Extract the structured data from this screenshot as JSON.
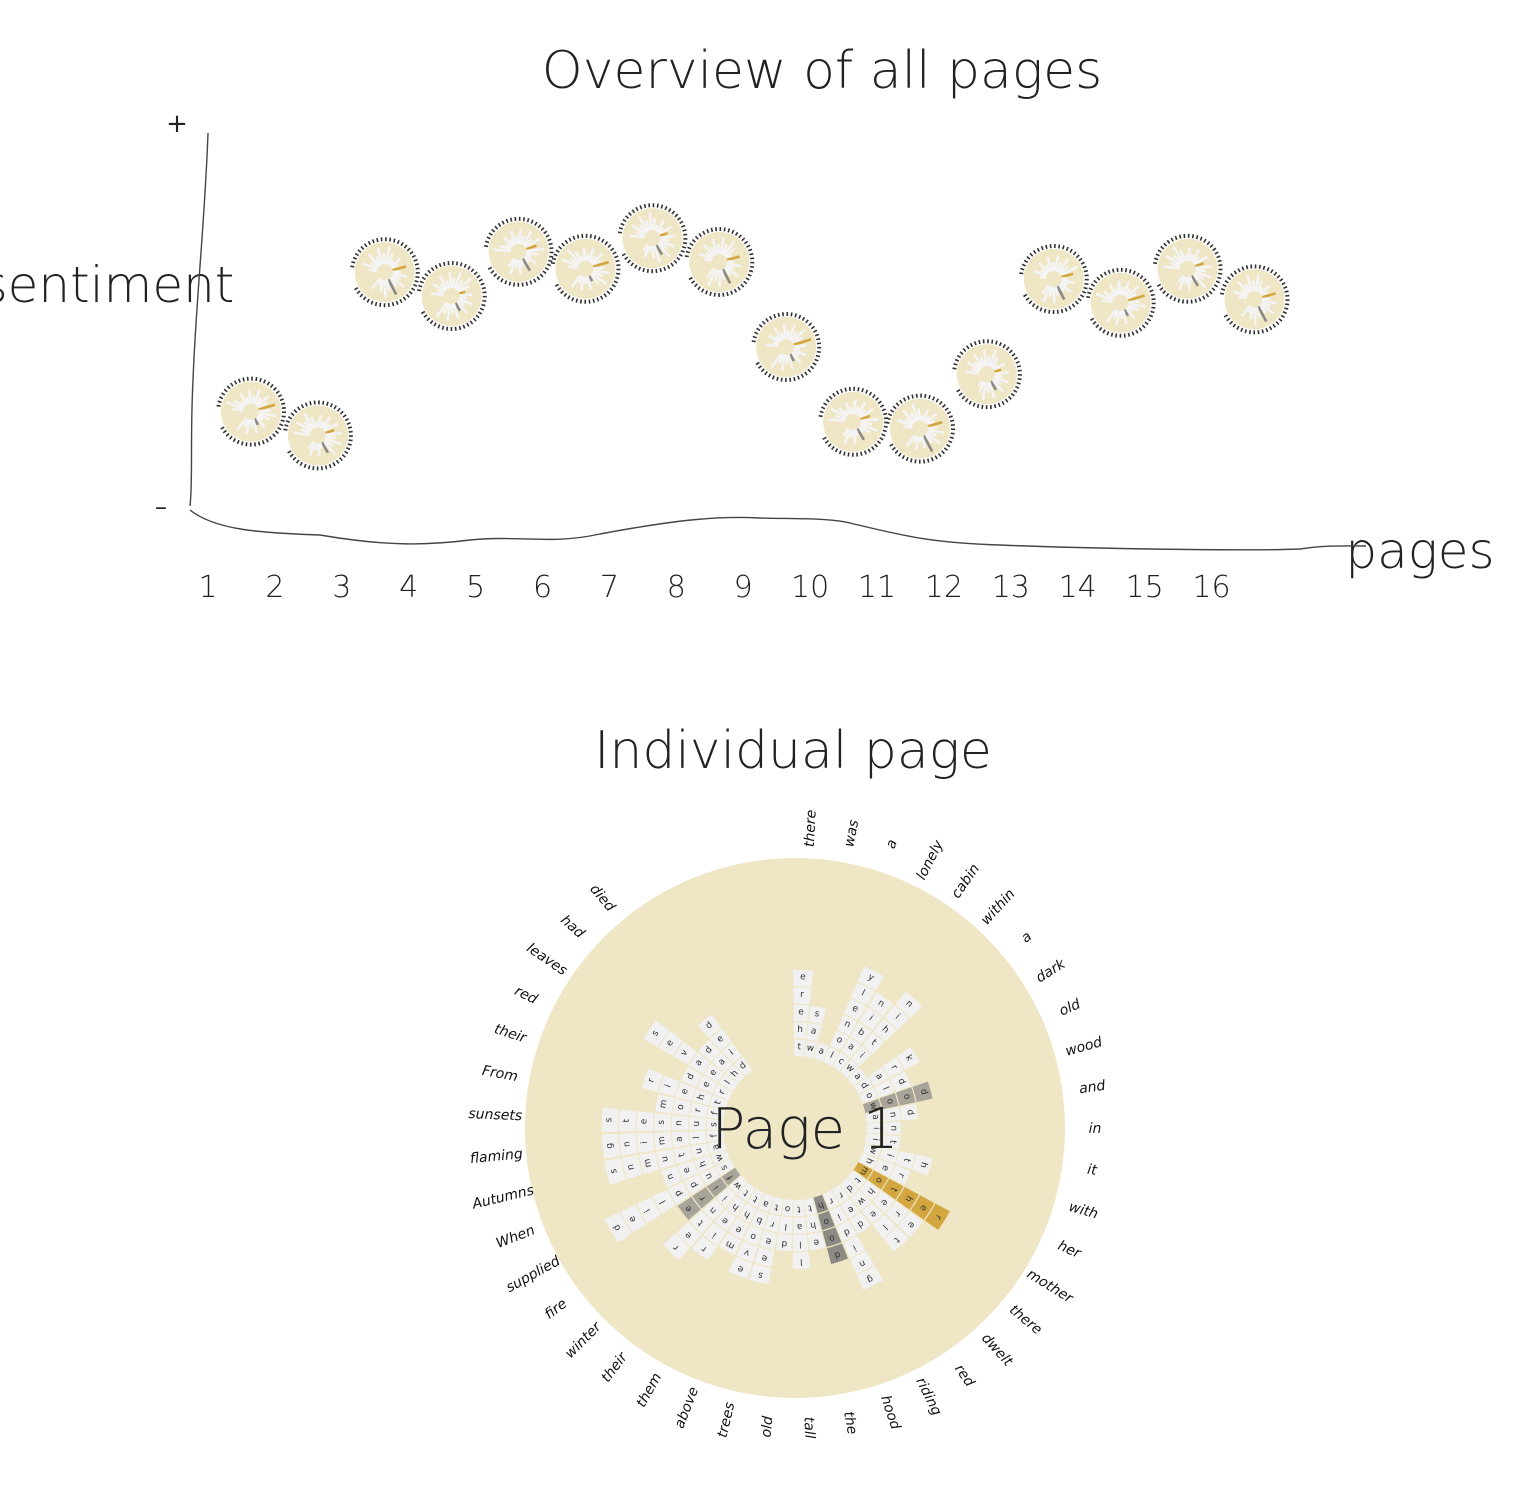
{
  "overview": {
    "title": "Overview of all pages",
    "y_axis": {
      "label": "sentiment",
      "top_mark": "+",
      "bottom_mark": "–"
    },
    "x_axis": {
      "label": "pages"
    },
    "pages": [
      {
        "label": "1",
        "sentiment": 0.26
      },
      {
        "label": "2",
        "sentiment": 0.19
      },
      {
        "label": "3",
        "sentiment": 0.67
      },
      {
        "label": "4",
        "sentiment": 0.6
      },
      {
        "label": "5",
        "sentiment": 0.73
      },
      {
        "label": "6",
        "sentiment": 0.68
      },
      {
        "label": "7",
        "sentiment": 0.77
      },
      {
        "label": "8",
        "sentiment": 0.7
      },
      {
        "label": "9",
        "sentiment": 0.45
      },
      {
        "label": "10",
        "sentiment": 0.23
      },
      {
        "label": "11",
        "sentiment": 0.21
      },
      {
        "label": "12",
        "sentiment": 0.37
      },
      {
        "label": "13",
        "sentiment": 0.65
      },
      {
        "label": "14",
        "sentiment": 0.58
      },
      {
        "label": "15",
        "sentiment": 0.68
      },
      {
        "label": "16",
        "sentiment": 0.59
      }
    ]
  },
  "detail": {
    "title": "Individual page",
    "center_label": "Page 1",
    "colors": {
      "disc": "#efe6c6",
      "tile": "#f1f1f1",
      "gold": "#d3a640",
      "grey": "#a8a49a",
      "dark": "#8c8a84"
    },
    "words": [
      "there",
      "was",
      "a",
      "lonely",
      "cabin",
      "within",
      "a",
      "dark",
      "old",
      "wood",
      "and",
      "in",
      "it",
      "with",
      "her",
      "mother",
      "there",
      "dwelt",
      "red",
      "riding",
      "hood",
      "the",
      "tall",
      "old",
      "trees",
      "above",
      "them",
      "their",
      "winter",
      "fire",
      "supplied",
      "When",
      "Autumns",
      "flaming",
      "sunsets",
      "From",
      "their",
      "red",
      "leaves",
      "had",
      "died"
    ],
    "highlights": [
      {
        "word": "wood",
        "tone": "grey"
      },
      {
        "word": "mother",
        "tone": "gold"
      },
      {
        "word": "hood",
        "tone": "dark"
      },
      {
        "word": "fire",
        "tone": "grey"
      },
      {
        "word": "from",
        "tone": "gold"
      }
    ]
  }
}
